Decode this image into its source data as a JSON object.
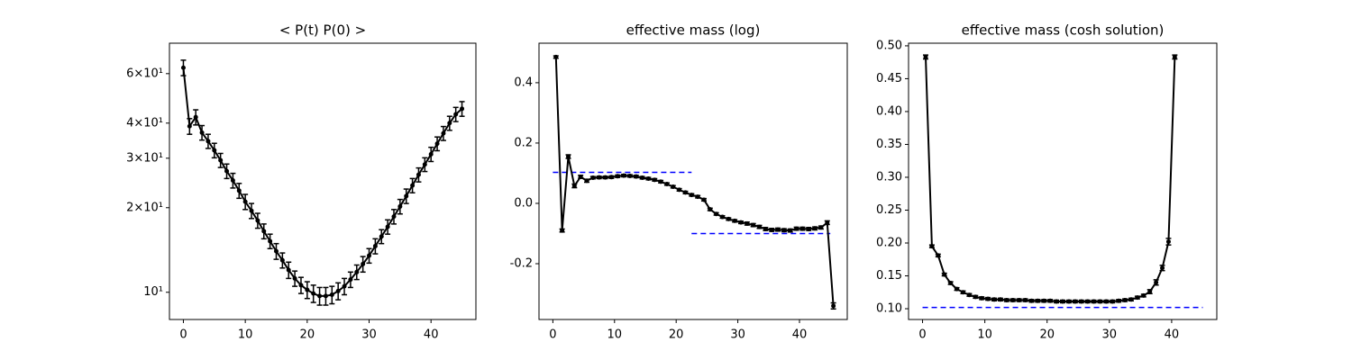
{
  "chart_data": [
    {
      "type": "line",
      "title": "< P(t)  P(0) >",
      "yscale": "log",
      "color": "black",
      "x": [
        0,
        1,
        2,
        3,
        4,
        5,
        6,
        7,
        8,
        9,
        10,
        11,
        12,
        13,
        14,
        15,
        16,
        17,
        18,
        19,
        20,
        21,
        22,
        23,
        24,
        25,
        26,
        27,
        28,
        29,
        30,
        31,
        32,
        33,
        34,
        35,
        36,
        37,
        38,
        39,
        40,
        41,
        42,
        43,
        44,
        45
      ],
      "values": [
        63,
        39,
        42,
        37,
        34.5,
        32,
        29.5,
        27,
        25,
        23,
        21,
        19.5,
        18,
        16.5,
        15.2,
        14,
        13,
        12,
        11.2,
        10.6,
        10.2,
        9.9,
        9.7,
        9.7,
        9.8,
        10.1,
        10.5,
        11.1,
        11.8,
        12.6,
        13.5,
        14.6,
        15.8,
        17.1,
        18.6,
        20.2,
        22,
        24,
        26.2,
        28.5,
        31,
        33.8,
        36.8,
        40,
        43,
        45
      ],
      "errors": [
        4,
        2.5,
        2.6,
        2.2,
        2,
        1.9,
        1.7,
        1.6,
        1.5,
        1.4,
        1.3,
        1.2,
        1.1,
        1,
        0.9,
        0.9,
        0.8,
        0.8,
        0.7,
        0.7,
        0.7,
        0.7,
        0.7,
        0.7,
        0.7,
        0.7,
        0.7,
        0.7,
        0.7,
        0.8,
        0.8,
        0.9,
        0.9,
        1,
        1.1,
        1.2,
        1.3,
        1.4,
        1.5,
        1.6,
        1.8,
        1.9,
        2.1,
        2.3,
        2.5,
        2.7
      ],
      "xlim": [
        -2.25,
        47.25
      ],
      "xticks": [
        0,
        10,
        20,
        30,
        40
      ],
      "ylim": [
        8.0,
        77
      ],
      "yticks": [
        {
          "value": 10,
          "label": "10¹"
        },
        {
          "value": 20,
          "label": "2×10¹"
        },
        {
          "value": 30,
          "label": "3×10¹"
        },
        {
          "value": 40,
          "label": "4×10¹"
        },
        {
          "value": 60,
          "label": "6×10¹"
        }
      ]
    },
    {
      "type": "line",
      "title": "effective mass (log)",
      "color": "black",
      "x": [
        0.5,
        1.5,
        2.5,
        3.5,
        4.5,
        5.5,
        6.5,
        7.5,
        8.5,
        9.5,
        10.5,
        11.5,
        12.5,
        13.5,
        14.5,
        15.5,
        16.5,
        17.5,
        18.5,
        19.5,
        20.5,
        21.5,
        22.5,
        23.5,
        24.5,
        25.5,
        26.5,
        27.5,
        28.5,
        29.5,
        30.5,
        31.5,
        32.5,
        33.5,
        34.5,
        35.5,
        36.5,
        37.5,
        38.5,
        39.5,
        40.5,
        41.5,
        42.5,
        43.5,
        44.5,
        45.5
      ],
      "values": [
        0.485,
        -0.09,
        0.155,
        0.058,
        0.088,
        0.075,
        0.085,
        0.086,
        0.086,
        0.087,
        0.09,
        0.092,
        0.091,
        0.089,
        0.085,
        0.082,
        0.078,
        0.072,
        0.064,
        0.055,
        0.045,
        0.036,
        0.028,
        0.022,
        0.012,
        -0.02,
        -0.035,
        -0.045,
        -0.052,
        -0.058,
        -0.063,
        -0.067,
        -0.072,
        -0.078,
        -0.085,
        -0.088,
        -0.087,
        -0.089,
        -0.09,
        -0.084,
        -0.084,
        -0.085,
        -0.083,
        -0.08,
        -0.064,
        -0.34
      ],
      "errors": [
        0.004,
        0.005,
        0.006,
        0.006,
        0.005,
        0.005,
        0.004,
        0.004,
        0.004,
        0.004,
        0.004,
        0.004,
        0.004,
        0.004,
        0.004,
        0.004,
        0.004,
        0.004,
        0.004,
        0.004,
        0.004,
        0.004,
        0.004,
        0.004,
        0.004,
        0.004,
        0.004,
        0.004,
        0.004,
        0.004,
        0.004,
        0.005,
        0.005,
        0.005,
        0.005,
        0.005,
        0.005,
        0.005,
        0.005,
        0.005,
        0.005,
        0.005,
        0.005,
        0.005,
        0.006,
        0.01
      ],
      "hlines": [
        {
          "y": 0.103,
          "xmin": 0,
          "xmax": 22.5,
          "color": "blue"
        },
        {
          "y": -0.1,
          "xmin": 22.5,
          "xmax": 45,
          "color": "blue"
        }
      ],
      "xlim": [
        -2.25,
        47.75
      ],
      "xticks": [
        0,
        10,
        20,
        30,
        40
      ],
      "ylim": [
        -0.385,
        0.531
      ],
      "yticks": [
        -0.2,
        {
          "value": 0,
          "label": "0.0"
        },
        0.2,
        0.4
      ]
    },
    {
      "type": "line",
      "title": "effective mass (cosh solution)",
      "color": "black",
      "x": [
        0.5,
        1.5,
        2.5,
        3.5,
        4.5,
        5.5,
        6.5,
        7.5,
        8.5,
        9.5,
        10.5,
        11.5,
        12.5,
        13.5,
        14.5,
        15.5,
        16.5,
        17.5,
        18.5,
        19.5,
        20.5,
        21.5,
        22.5,
        23.5,
        24.5,
        25.5,
        26.5,
        27.5,
        28.5,
        29.5,
        30.5,
        31.5,
        32.5,
        33.5,
        34.5,
        35.5,
        36.5,
        37.5,
        38.5,
        39.5,
        40.5
      ],
      "values": [
        0.483,
        0.195,
        0.181,
        0.152,
        0.139,
        0.13,
        0.125,
        0.121,
        0.118,
        0.116,
        0.115,
        0.114,
        0.114,
        0.113,
        0.113,
        0.113,
        0.113,
        0.112,
        0.112,
        0.112,
        0.112,
        0.111,
        0.111,
        0.111,
        0.111,
        0.111,
        0.111,
        0.111,
        0.111,
        0.111,
        0.111,
        0.112,
        0.113,
        0.114,
        0.117,
        0.12,
        0.126,
        0.14,
        0.162,
        0.202,
        0.483
      ],
      "errors": [
        0.003,
        0.002,
        0.002,
        0.002,
        0.002,
        0.002,
        0.002,
        0.002,
        0.002,
        0.002,
        0.002,
        0.002,
        0.002,
        0.002,
        0.002,
        0.002,
        0.002,
        0.002,
        0.002,
        0.002,
        0.002,
        0.002,
        0.002,
        0.002,
        0.002,
        0.002,
        0.002,
        0.002,
        0.002,
        0.002,
        0.002,
        0.002,
        0.002,
        0.002,
        0.002,
        0.002,
        0.003,
        0.004,
        0.004,
        0.005,
        0.003
      ],
      "hlines": [
        {
          "y": 0.102,
          "xmin": 0,
          "xmax": 45,
          "color": "blue"
        }
      ],
      "xlim": [
        -2.25,
        47.25
      ],
      "xticks": [
        0,
        10,
        20,
        30,
        40
      ],
      "ylim": [
        0.0836,
        0.504
      ],
      "yticks": [
        {
          "value": 0.1,
          "label": "0.10"
        },
        0.15,
        {
          "value": 0.2,
          "label": "0.20"
        },
        0.25,
        {
          "value": 0.3,
          "label": "0.30"
        },
        0.35,
        {
          "value": 0.4,
          "label": "0.40"
        },
        0.45,
        {
          "value": 0.5,
          "label": "0.50"
        }
      ]
    }
  ]
}
